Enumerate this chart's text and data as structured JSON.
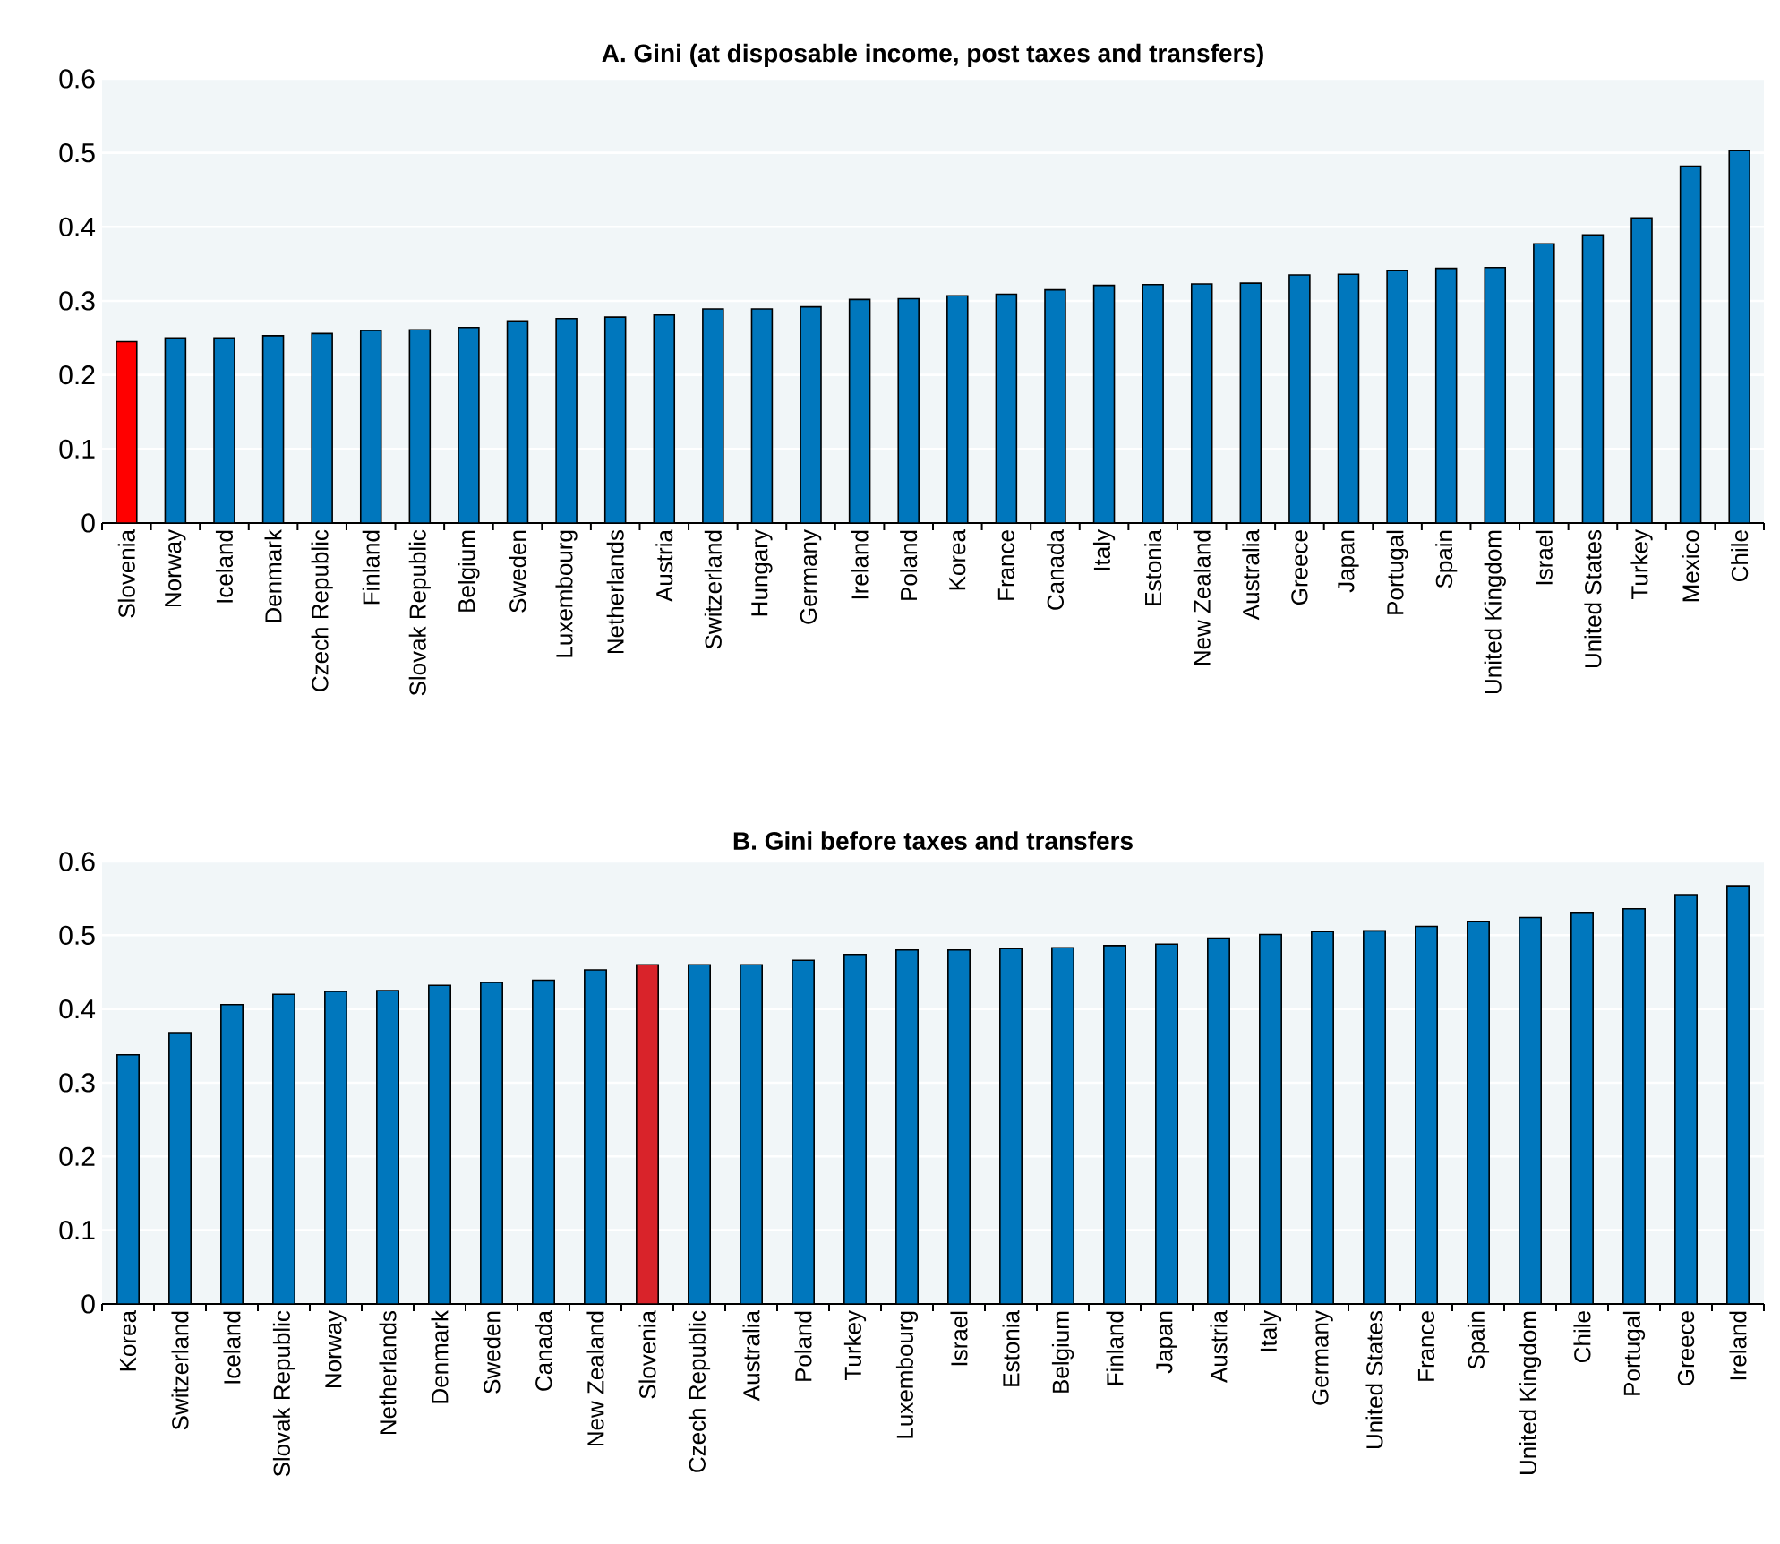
{
  "chart_data": [
    {
      "type": "bar",
      "title": "A. Gini (at disposable income, post taxes and transfers)",
      "categories": [
        "Slovenia",
        "Norway",
        "Iceland",
        "Denmark",
        "Czech Republic",
        "Finland",
        "Slovak Republic",
        "Belgium",
        "Sweden",
        "Luxembourg",
        "Netherlands",
        "Austria",
        "Switzerland",
        "Hungary",
        "Germany",
        "Ireland",
        "Poland",
        "Korea",
        "France",
        "Canada",
        "Italy",
        "Estonia",
        "New Zealand",
        "Australia",
        "Greece",
        "Japan",
        "Portugal",
        "Spain",
        "United Kingdom",
        "Israel",
        "United States",
        "Turkey",
        "Mexico",
        "Chile"
      ],
      "values": [
        0.245,
        0.25,
        0.25,
        0.253,
        0.256,
        0.26,
        0.261,
        0.264,
        0.273,
        0.276,
        0.278,
        0.281,
        0.289,
        0.289,
        0.292,
        0.302,
        0.303,
        0.307,
        0.309,
        0.315,
        0.321,
        0.322,
        0.323,
        0.324,
        0.335,
        0.336,
        0.341,
        0.344,
        0.345,
        0.377,
        0.389,
        0.412,
        0.482,
        0.503
      ],
      "colors": [
        "#ff0000",
        "#0077bd",
        "#0077bd",
        "#0077bd",
        "#0077bd",
        "#0077bd",
        "#0077bd",
        "#0077bd",
        "#0077bd",
        "#0077bd",
        "#0077bd",
        "#0077bd",
        "#0077bd",
        "#0077bd",
        "#0077bd",
        "#0077bd",
        "#0077bd",
        "#0077bd",
        "#0077bd",
        "#0077bd",
        "#0077bd",
        "#0077bd",
        "#0077bd",
        "#0077bd",
        "#0077bd",
        "#0077bd",
        "#0077bd",
        "#0077bd",
        "#0077bd",
        "#0077bd",
        "#0077bd",
        "#0077bd",
        "#0077bd",
        "#0077bd"
      ],
      "ylim": [
        0,
        0.6
      ],
      "yticks": [
        0,
        0.1,
        0.2,
        0.3,
        0.4,
        0.5,
        0.6
      ],
      "grid": "y"
    },
    {
      "type": "bar",
      "title": "B. Gini before taxes and transfers",
      "categories": [
        "Korea",
        "Switzerland",
        "Iceland",
        "Slovak Republic",
        "Norway",
        "Netherlands",
        "Denmark",
        "Sweden",
        "Canada",
        "New Zealand",
        "Slovenia",
        "Czech Republic",
        "Australia",
        "Poland",
        "Turkey",
        "Luxembourg",
        "Israel",
        "Estonia",
        "Belgium",
        "Finland",
        "Japan",
        "Austria",
        "Italy",
        "Germany",
        "United States",
        "France",
        "Spain",
        "United Kingdom",
        "Chile",
        "Portugal",
        "Greece",
        "Ireland"
      ],
      "values": [
        0.338,
        0.368,
        0.406,
        0.42,
        0.424,
        0.425,
        0.432,
        0.436,
        0.439,
        0.453,
        0.46,
        0.46,
        0.46,
        0.466,
        0.474,
        0.48,
        0.48,
        0.482,
        0.483,
        0.486,
        0.488,
        0.496,
        0.501,
        0.505,
        0.506,
        0.512,
        0.519,
        0.524,
        0.531,
        0.536,
        0.555,
        0.567
      ],
      "colors": [
        "#0077bd",
        "#0077bd",
        "#0077bd",
        "#0077bd",
        "#0077bd",
        "#0077bd",
        "#0077bd",
        "#0077bd",
        "#0077bd",
        "#0077bd",
        "#d9232a",
        "#0077bd",
        "#0077bd",
        "#0077bd",
        "#0077bd",
        "#0077bd",
        "#0077bd",
        "#0077bd",
        "#0077bd",
        "#0077bd",
        "#0077bd",
        "#0077bd",
        "#0077bd",
        "#0077bd",
        "#0077bd",
        "#0077bd",
        "#0077bd",
        "#0077bd",
        "#0077bd",
        "#0077bd",
        "#0077bd",
        "#0077bd"
      ],
      "ylim": [
        0,
        0.6
      ],
      "yticks": [
        0,
        0.1,
        0.2,
        0.3,
        0.4,
        0.5,
        0.6
      ],
      "grid": "y"
    }
  ]
}
